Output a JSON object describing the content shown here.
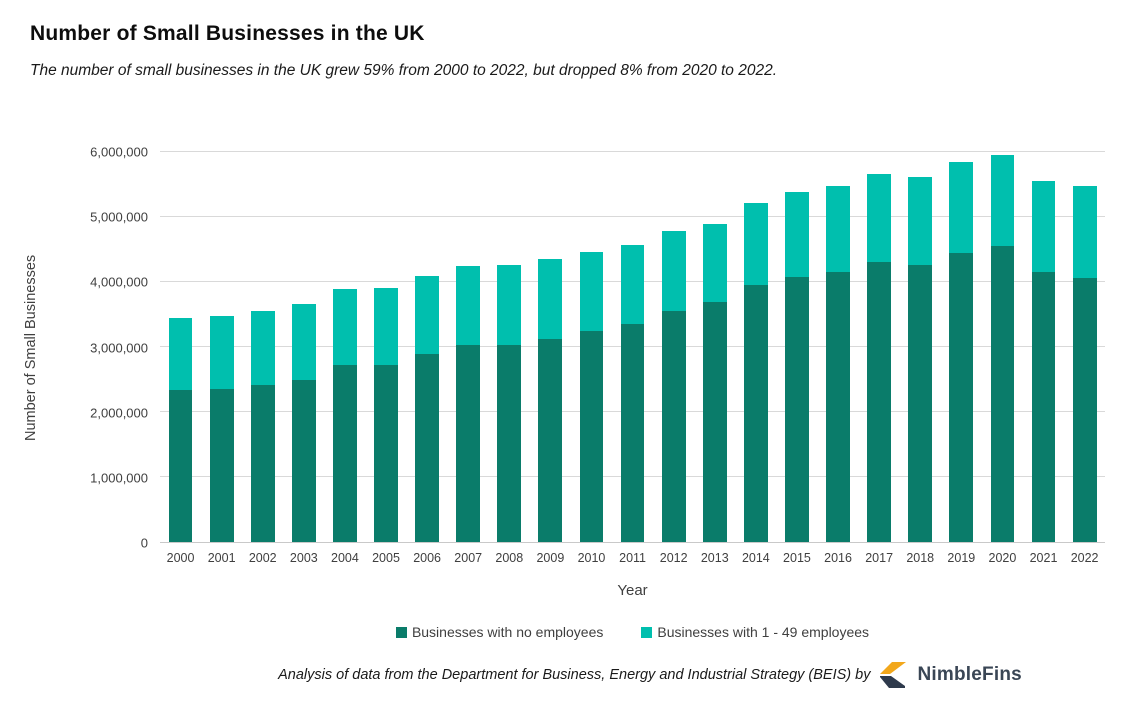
{
  "header": {
    "title": "Number of Small Businesses in the UK",
    "subtitle": "The number of small businesses in the UK grew 59% from 2000 to 2022, but dropped 8% from 2020 to 2022."
  },
  "chart_data": {
    "type": "bar",
    "stacked": true,
    "title": "Number of Small Businesses in the UK",
    "xlabel": "Year",
    "ylabel": "Number of Small Businesses",
    "ylim": [
      0,
      6000000
    ],
    "ytick_values": [
      0,
      1000000,
      2000000,
      3000000,
      4000000,
      5000000,
      6000000
    ],
    "ytick_labels": [
      "0",
      "1,000,000",
      "2,000,000",
      "3,000,000",
      "4,000,000",
      "5,000,000",
      "6,000,000"
    ],
    "grid": "horizontal",
    "legend_position": "bottom",
    "categories": [
      "2000",
      "2001",
      "2002",
      "2003",
      "2004",
      "2005",
      "2006",
      "2007",
      "2008",
      "2009",
      "2010",
      "2011",
      "2012",
      "2013",
      "2014",
      "2015",
      "2016",
      "2017",
      "2018",
      "2019",
      "2020",
      "2021",
      "2022"
    ],
    "series": [
      {
        "name": "Businesses with no employees",
        "color": "#0a7c6a",
        "values": [
          2340000,
          2350000,
          2410000,
          2490000,
          2730000,
          2730000,
          2900000,
          3030000,
          3030000,
          3120000,
          3250000,
          3360000,
          3560000,
          3700000,
          3960000,
          4080000,
          4160000,
          4310000,
          4260000,
          4450000,
          4560000,
          4160000,
          4060000
        ]
      },
      {
        "name": "Businesses with 1 - 49 employees",
        "color": "#00bfae",
        "values": [
          1110000,
          1120000,
          1150000,
          1170000,
          1170000,
          1180000,
          1200000,
          1210000,
          1230000,
          1230000,
          1210000,
          1210000,
          1230000,
          1200000,
          1250000,
          1300000,
          1310000,
          1350000,
          1360000,
          1390000,
          1390000,
          1400000,
          1410000
        ]
      }
    ]
  },
  "footer": {
    "attribution": "Analysis of data from the Department for Business, Energy and Industrial Strategy (BEIS) by",
    "brand": "NimbleFins",
    "logo_colors": {
      "top": "#f2a71b",
      "bottom": "#2e3a4c"
    }
  },
  "colors": {
    "gridline": "#d9d9d9",
    "axis_line": "#c9c9c9",
    "tick_text": "#3f3f3f"
  }
}
